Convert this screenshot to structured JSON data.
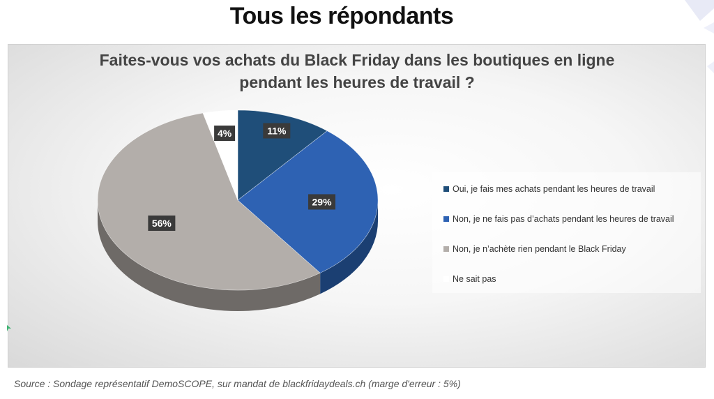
{
  "page": {
    "title": "Tous les répondants",
    "source": "Source : Sondage représentatif DemoSCOPE, sur mandat de blackfridaydeals.ch (marge d'erreur : 5%)"
  },
  "chart_data": {
    "type": "pie",
    "title_lines": [
      "Faites-vous vos achats du Black Friday dans les boutiques en ligne",
      "pendant les heures de travail ?"
    ],
    "categories": [
      "Oui, je fais mes achats pendant les heures de travail",
      "Non, je ne fais pas d’achats pendant les heures de travail",
      "Non, je n’achète rien pendant le Black Friday",
      "Ne sait pas"
    ],
    "values": [
      11,
      29,
      56,
      4
    ],
    "value_labels": [
      "11%",
      "29%",
      "56%",
      "4%"
    ],
    "colors": [
      "#1f4e79",
      "#2e62b3",
      "#b3aeaa",
      "#ffffff"
    ],
    "side_colors": [
      "#14324e",
      "#1b3f72",
      "#6e6a67",
      "#bdbdbd"
    ],
    "legend_position": "right",
    "style": "3d-pie"
  }
}
